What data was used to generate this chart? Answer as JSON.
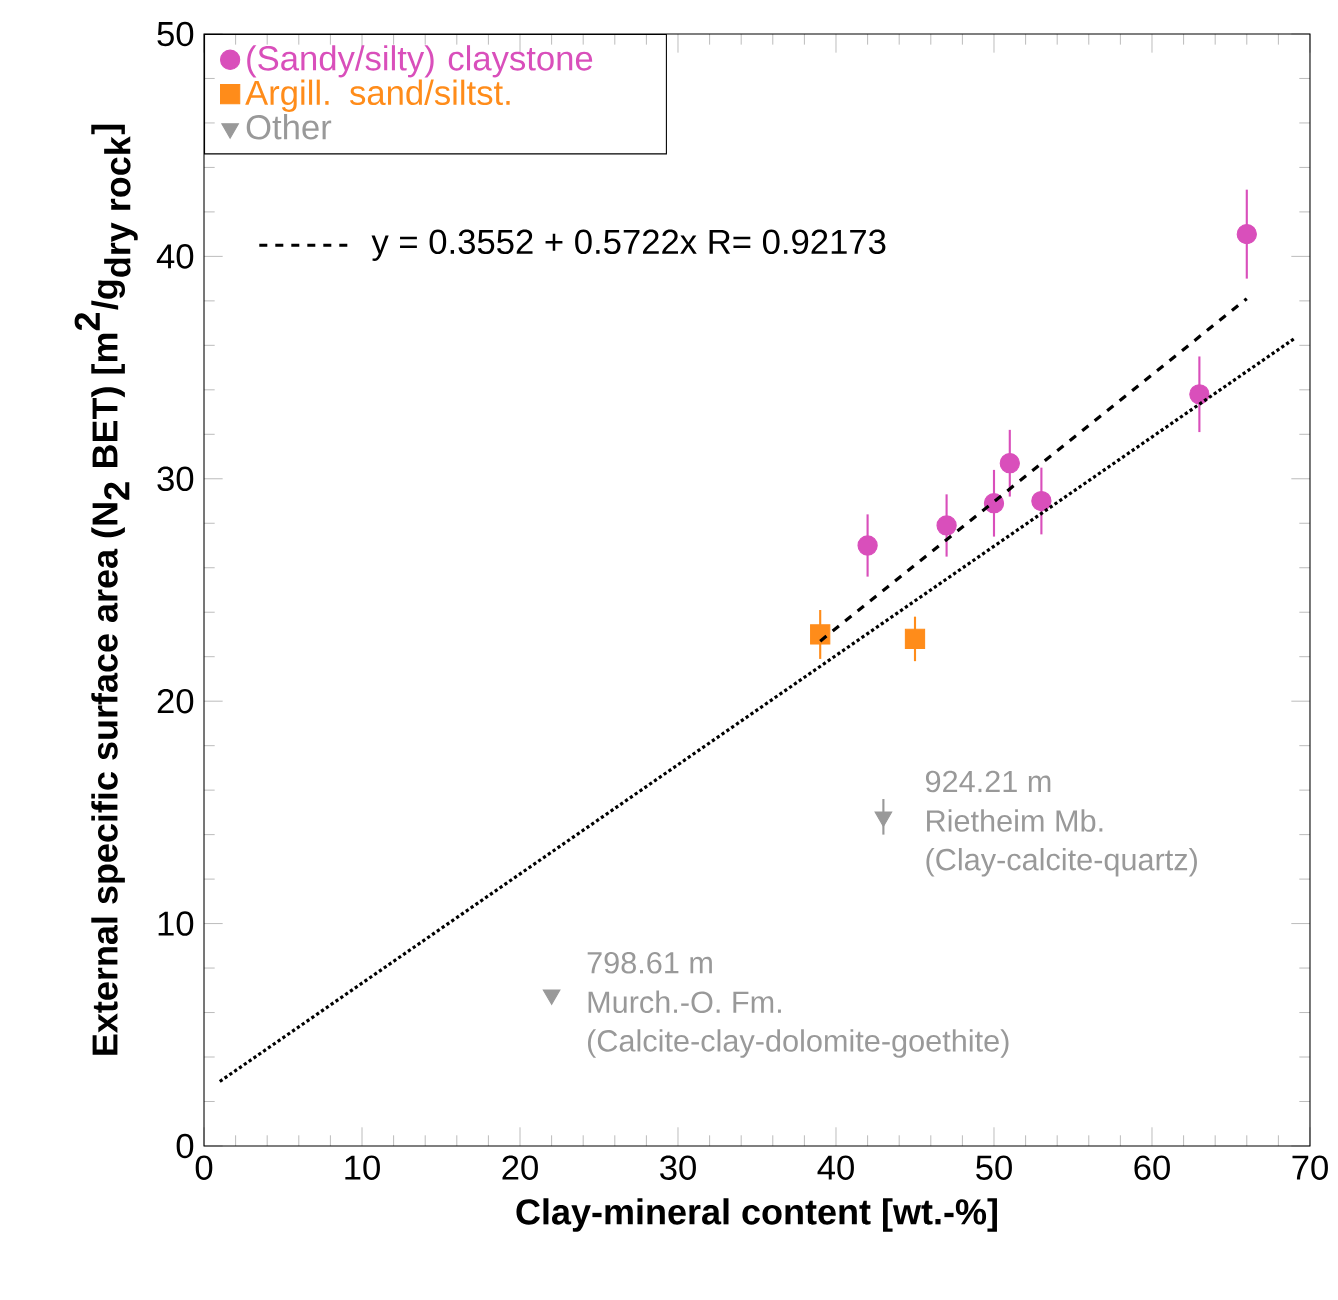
{
  "chart_data": {
    "type": "scatter",
    "xlabel": "Clay-mineral content [wt.-%]",
    "ylabel": "\\textbf{External specific surface area  (N}_{\\textbf{2}}\\textbf{ BET) [m}^{\\textbf{2}}\\textbf{/g}_{\\textbf{dry rock}}\\textbf{]}",
    "xlim": [
      0,
      70
    ],
    "xticks": [
      0,
      10,
      20,
      30,
      40,
      50,
      60,
      70
    ],
    "ylim": [
      0,
      50
    ],
    "yticks": [
      0,
      10,
      20,
      30,
      40,
      50
    ],
    "grid": false,
    "legend": "top left",
    "series": [
      {
        "name": "(Sandy/silty) claystone",
        "color": "#d94fbb",
        "marker": "circle",
        "x": [
          42,
          47,
          50,
          51,
          53,
          63,
          66
        ],
        "values": [
          27.0,
          27.9,
          28.9,
          30.7,
          29.0,
          33.8,
          41.0
        ],
        "errors": [
          1.4,
          1.4,
          1.5,
          1.5,
          1.5,
          1.7,
          2.0
        ]
      },
      {
        "name": "Argill. sand/siltst.",
        "color": "#ff8c1a",
        "marker": "square",
        "x": [
          39,
          45
        ],
        "values": [
          23.0,
          22.8
        ],
        "errors": [
          1.1,
          1.0
        ]
      },
      {
        "name": "Other",
        "color": "#999999",
        "marker": "triangle",
        "x": [
          43,
          22
        ],
        "values": [
          14.8,
          6.8
        ],
        "errors": [
          0.8,
          null
        ]
      },
      {
        "name": "y = 0.3552 + 0.5722x   R= 0.92173",
        "type": "line",
        "line_style": "dashed",
        "color": "#000000",
        "marker": "none",
        "x": [
          39,
          66
        ],
        "values": [
          22.7,
          38.1
        ]
      },
      {
        "type": "line",
        "line_style": "dotted",
        "color": "#000000",
        "marker": "none",
        "x": [
          1,
          69
        ],
        "values": [
          2.9,
          36.3
        ]
      }
    ],
    "annotations": [
      "924.21 m",
      "Rietheim Mb.",
      "(Clay-calcite-quartz)",
      "798.61 m",
      "Murch.-O. Fm.",
      "(Calcite-clay-dolomite-goethite)"
    ]
  }
}
